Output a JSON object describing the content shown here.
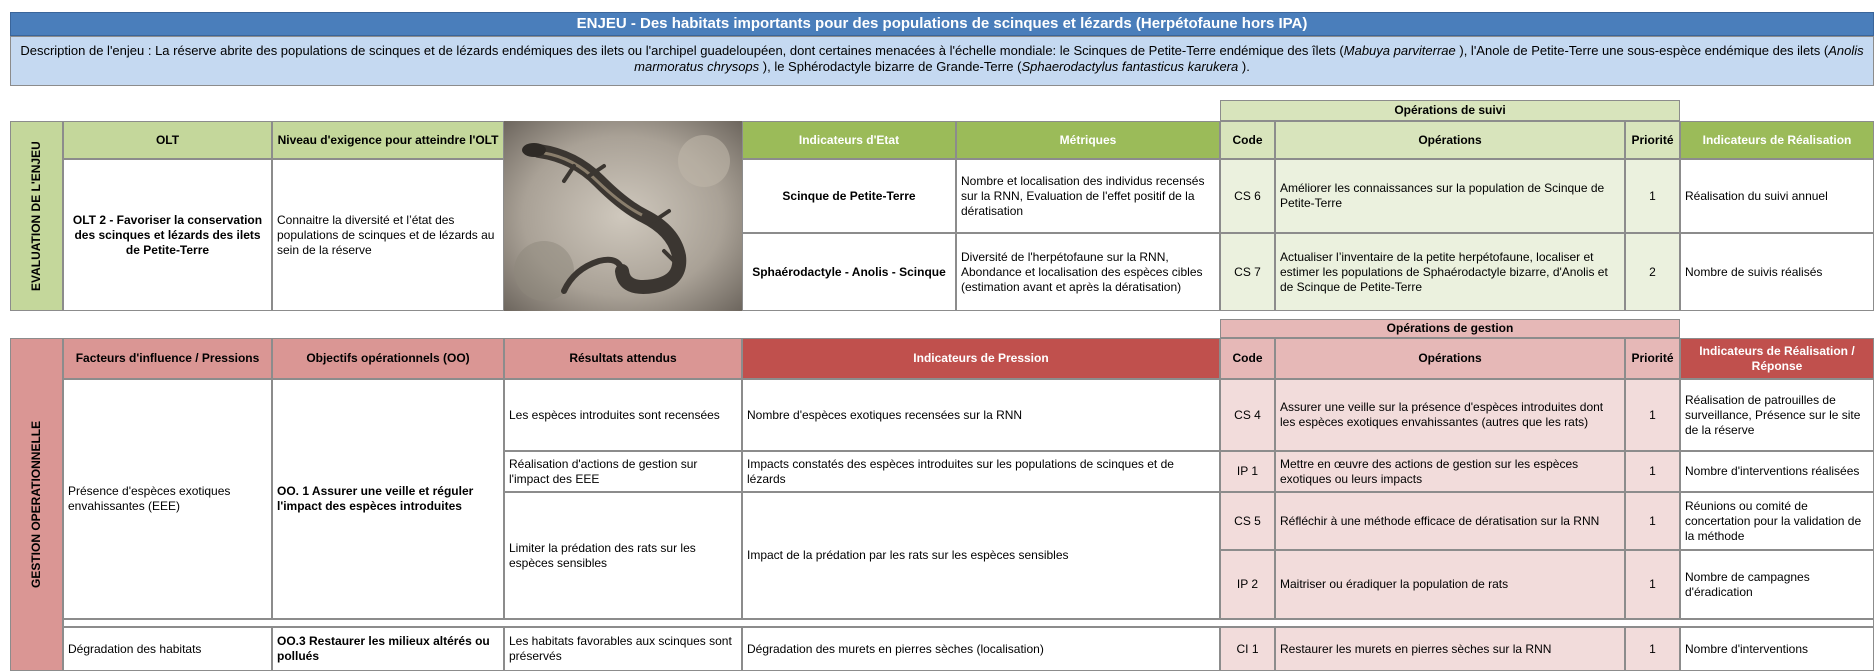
{
  "title": "ENJEU  - Des habitats importants pour des populations de scinques et lézards (Herpétofaune hors IPA)",
  "description": [
    "Description de l'enjeu : La réserve abrite des populations de scinques et de lézards endémiques des ilets ou l'archipel guadeloupéen, dont certaines menacées à l'échelle mondiale: le Scinques de Petite-Terre endémique des îlets (",
    "Mabuya parviterrae",
    " ), l'Anole de Petite-Terre une sous-espèce endémique des ilets (",
    "Anolis marmoratus chrysops",
    " ), le Sphérodactyle bizarre de Grande-Terre (",
    "Sphaerodactylus fantasticus karukera",
    " )."
  ],
  "evaluation": {
    "section_label": "EVALUATION DE L'ENJEU",
    "suivi_header": "Opérations de suivi",
    "headers": [
      "OLT",
      "Niveau d'exigence pour atteindre l'OLT",
      "Indicateurs d'Etat",
      "Métriques",
      "Code",
      "Opérations",
      "Priorité",
      "Indicateurs de Réalisation"
    ],
    "olt": "OLT 2 - Favoriser la conservation des scinques et lézards des ilets de Petite-Terre",
    "niveau": "Connaitre la diversité et l’état des populations de scinques et de lézards au sein de la réserve",
    "rows": [
      [
        "Scinque de Petite-Terre",
        "Nombre et localisation des individus recensés sur la RNN, Evaluation de l'effet positif de la dératisation",
        "CS 6",
        "Améliorer les connaissances sur la population de Scinque de Petite-Terre",
        1,
        "Réalisation du suivi annuel"
      ],
      [
        "Sphaérodactyle - Anolis - Scinque",
        "Diversité de l'herpétofaune sur la RNN, Abondance et localisation des espèces cibles (estimation avant et après la dératisation)",
        "CS 7",
        "Actualiser l’inventaire de la petite herpétofaune,  localiser et estimer les populations de Sphaérodactyle bizarre, d'Anolis et de Scinque de Petite-Terre",
        2,
        "Nombre de suivis réalisés"
      ]
    ]
  },
  "gestion": {
    "section_label": "GESTION OPERATIONNELLE",
    "gestion_header": "Opérations de gestion",
    "headers": [
      "Facteurs d'influence / Pressions",
      "Objectifs opérationnels (OO)",
      "Résultats attendus",
      "Indicateurs de Pression",
      "Code",
      "Opérations",
      "Priorité",
      "Indicateurs de Réalisation / Réponse"
    ],
    "facteurs": [
      {
        "facteur": "Présence d'espèces exotiques envahissantes (EEE)",
        "objectif": "OO. 1 Assurer une veille et réguler l'impact des espèces introduites",
        "resultats": [
          {
            "resultat": "Les espèces introduites sont recensées",
            "indicateur": "Nombre d'espèces exotiques recensées sur la RNN",
            "operations": [
              [
                "CS 4",
                "Assurer une veille sur la présence d'espèces introduites dont les espèces exotiques envahissantes (autres que les rats)",
                1,
                "Réalisation de patrouilles de surveillance, Présence sur le site de la réserve"
              ]
            ]
          },
          {
            "resultat": "Réalisation d'actions de gestion sur l'impact des EEE",
            "indicateur": "Impacts constatés des espèces introduites sur les populations de scinques et de lézards",
            "operations": [
              [
                "IP 1",
                "Mettre en œuvre des actions de gestion sur les espèces exotiques ou leurs impacts",
                1,
                "Nombre d'interventions réalisées"
              ]
            ]
          },
          {
            "resultat": "Limiter la prédation des rats sur les espèces sensibles",
            "indicateur": "Impact de la prédation par les rats sur les espèces sensibles",
            "operations": [
              [
                "CS 5",
                "Réfléchir à une méthode efficace de dératisation sur la RNN",
                1,
                "Réunions ou comité de concertation pour la validation de la méthode"
              ],
              [
                "IP 2",
                "Maitriser ou éradiquer la population de rats",
                1,
                "Nombre de campagnes d'éradication"
              ]
            ]
          }
        ]
      },
      {
        "facteur": "Dégradation des habitats",
        "objectif": "OO.3 Restaurer les milieux altérés ou pollués",
        "resultats": [
          {
            "resultat": "Les habitats favorables aux scinques sont préservés",
            "indicateur": "Dégradation des murets en pierres sèches (localisation)",
            "operations": [
              [
                "CI 1",
                "Restaurer les murets en pierres sèches sur la RNN",
                1,
                "Nombre d'interventions"
              ]
            ]
          }
        ]
      }
    ]
  }
}
